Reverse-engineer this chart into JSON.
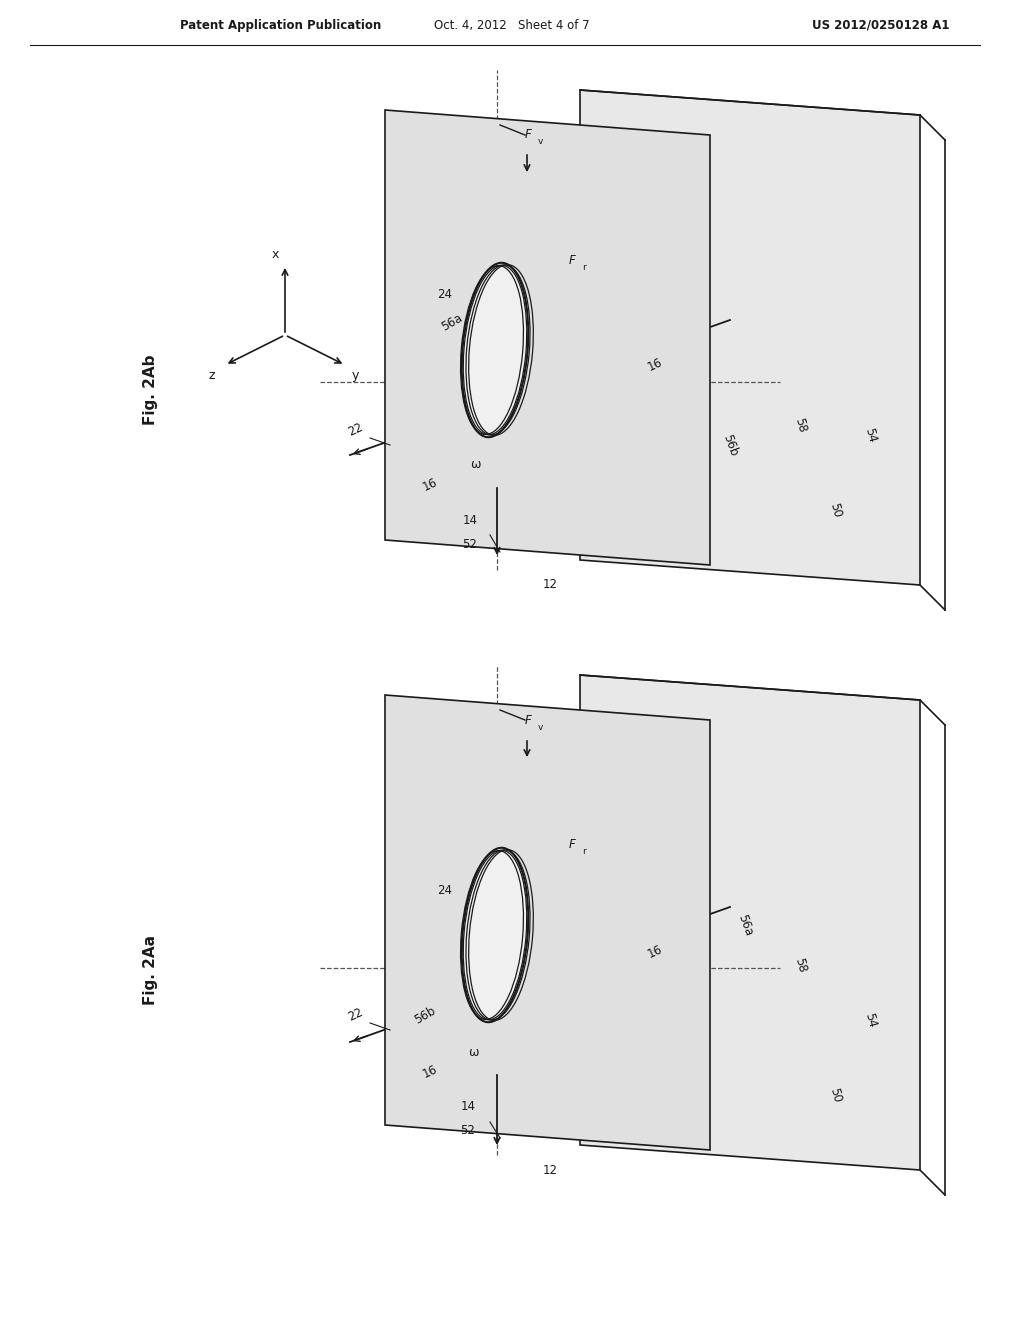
{
  "background_color": "#ffffff",
  "header_left": "Patent Application Publication",
  "header_center": "Oct. 4, 2012   Sheet 4 of 7",
  "header_right": "US 2012/0250128 A1",
  "fig_top_label": "Fig. 2Ab",
  "fig_bottom_label": "Fig. 2Aa",
  "line_color": "#1a1a1a",
  "text_color": "#1a1a1a"
}
